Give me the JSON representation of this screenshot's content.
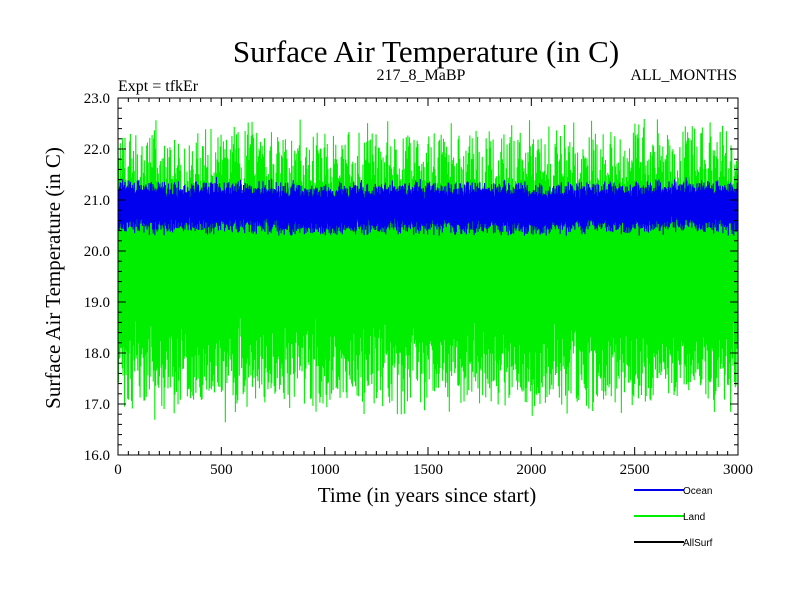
{
  "chart_data": {
    "type": "line",
    "title": "Surface Air Temperature (in C)",
    "subtitle_left": "Expt = tfkEr",
    "subtitle_center": "217_8_MaBP",
    "subtitle_right": "ALL_MONTHS",
    "xlabel": "Time (in years since start)",
    "ylabel": "Surface Air Temperature (in C)",
    "xlim": [
      0,
      3000
    ],
    "ylim": [
      16.0,
      23.0
    ],
    "x_ticks": [
      "0",
      "500",
      "1000",
      "1500",
      "2000",
      "2500",
      "3000"
    ],
    "y_ticks": [
      "16.0",
      "17.0",
      "18.0",
      "19.0",
      "20.0",
      "21.0",
      "22.0",
      "23.0"
    ],
    "grid": false,
    "legend_position": "below-right",
    "legend": [
      "Ocean",
      "Land",
      "AllSurf"
    ],
    "series": [
      {
        "name": "Land",
        "color": "#00ee00",
        "summary": {
          "mean": 19.7,
          "min": 16.4,
          "max": 22.6,
          "typical_low": 17.0,
          "typical_high": 22.2
        },
        "x": [
          0,
          250,
          500,
          750,
          1000,
          1250,
          1500,
          1750,
          2000,
          2250,
          2500,
          2750,
          3000
        ],
        "values": [
          19.7,
          19.6,
          19.7,
          19.7,
          19.6,
          19.7,
          19.7,
          19.7,
          19.6,
          19.7,
          19.7,
          19.7,
          19.7
        ]
      },
      {
        "name": "Ocean",
        "color": "#0000ee",
        "summary": {
          "mean": 20.85,
          "min": 20.3,
          "max": 21.6,
          "typical_low": 20.4,
          "typical_high": 21.4
        },
        "x": [
          0,
          250,
          500,
          750,
          1000,
          1250,
          1500,
          1750,
          2000,
          2250,
          2500,
          2750,
          3000
        ],
        "values": [
          20.9,
          20.85,
          20.85,
          20.85,
          20.8,
          20.85,
          20.85,
          20.85,
          20.8,
          20.85,
          20.85,
          20.9,
          20.85
        ]
      },
      {
        "name": "AllSurf",
        "color": "#000000",
        "values": []
      }
    ]
  }
}
